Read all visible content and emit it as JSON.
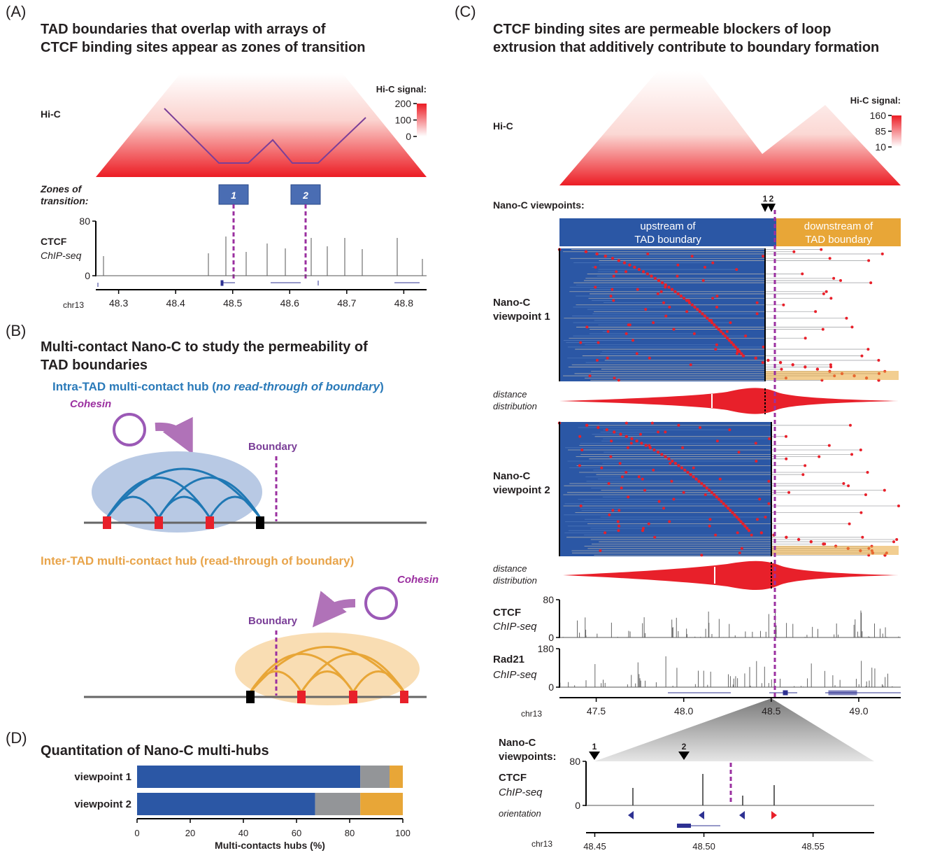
{
  "panel_a": {
    "letter": "(A)",
    "title_lines": [
      "TAD boundaries that overlap with arrays of",
      "CTCF binding sites appear as zones of transition"
    ],
    "hic_label": "Hi-C",
    "scale_title": "Hi-C signal:",
    "scale_ticks": [
      200,
      100,
      0
    ],
    "scale_lim": [
      0,
      200
    ],
    "zones_label_lines": [
      "Zones of",
      "transition:"
    ],
    "zones": [
      "1",
      "2"
    ],
    "track_label": "CTCF",
    "track_sublabel": "ChIP-seq",
    "track_ticks": [
      80,
      0
    ],
    "track_lim": [
      0,
      80
    ],
    "chrom": "chr13",
    "xticks": [
      48.3,
      48.4,
      48.5,
      48.6,
      48.7,
      48.8
    ],
    "xlim": [
      48.26,
      48.84
    ]
  },
  "panel_b": {
    "letter": "(B)",
    "title_lines": [
      "Multi-contact Nano-C to study the permeability of",
      "TAD boundaries"
    ],
    "intra_title": {
      "pre": "Intra-TAD multi-contact hub (",
      "em": "no read-through of boundary",
      "post": ")"
    },
    "inter_title": "Inter-TAD multi-contact hub (read-through of boundary)",
    "cohesin": "Cohesin",
    "boundary": "Boundary"
  },
  "panel_c": {
    "letter": "(C)",
    "title_lines": [
      "CTCF binding sites are permeable blockers of loop",
      "extrusion that additively contribute to boundary formation"
    ],
    "hic_label": "Hi-C",
    "scale_title": "Hi-C signal:",
    "scale_ticks": [
      160,
      85,
      10
    ],
    "scale_lim": [
      10,
      160
    ],
    "viewpoints_label": "Nano-C viewpoints:",
    "viewpoint_ids": [
      "1",
      "2"
    ],
    "upstream_lines": [
      "upstream of",
      "TAD boundary"
    ],
    "downstream_lines": [
      "downstream of",
      "TAD boundary"
    ],
    "vp1_lines": [
      "Nano-C",
      "viewpoint 1"
    ],
    "vp2_lines": [
      "Nano-C",
      "viewpoint 2"
    ],
    "dist_lines": [
      "distance",
      "distribution"
    ],
    "ctcf": {
      "label": "CTCF",
      "sublabel": "ChIP-seq",
      "yticks": [
        80,
        0
      ],
      "ylim": [
        0,
        80
      ]
    },
    "rad21": {
      "label": "Rad21",
      "sublabel": "ChIP-seq",
      "yticks": [
        180,
        0
      ],
      "ylim": [
        0,
        180
      ]
    },
    "chrom": "chr13",
    "xticks": [
      47.5,
      {
        "value": 48,
        "label": "48.0"
      },
      48.5,
      {
        "value": 49,
        "label": "49.0"
      }
    ],
    "xlim": [
      47.29,
      49.24
    ],
    "zoom": {
      "viewpoints_lines": [
        "Nano-C",
        "viewpoints:"
      ],
      "viewpoint_ids": [
        "1",
        "2"
      ],
      "ctcf_label": "CTCF",
      "ctcf_sublabel": "ChIP-seq",
      "orientation": "orientation",
      "yticks": [
        80,
        0
      ],
      "ylim": [
        0,
        80
      ],
      "chrom": "chr13",
      "xticks": [
        48.45,
        {
          "value": 48.5,
          "label": "48.50"
        },
        48.55
      ],
      "xlim": [
        48.446,
        48.578
      ]
    }
  },
  "chart_data": {
    "type": "bar",
    "letter": "(D)",
    "title": "Quantitation of Nano-C multi-hubs",
    "categories": [
      "viewpoint 1",
      "viewpoint 2"
    ],
    "series": [
      {
        "color": "#2b57a5",
        "values": [
          84,
          67
        ]
      },
      {
        "color": "#939598",
        "values": [
          11,
          17
        ]
      },
      {
        "color": "#e8a637",
        "values": [
          5,
          16
        ]
      }
    ],
    "xlim": [
      0,
      100
    ],
    "xticks": [
      0,
      20,
      40,
      60,
      80,
      100
    ],
    "xlabel": "Multi-contacts hubs (%)"
  }
}
